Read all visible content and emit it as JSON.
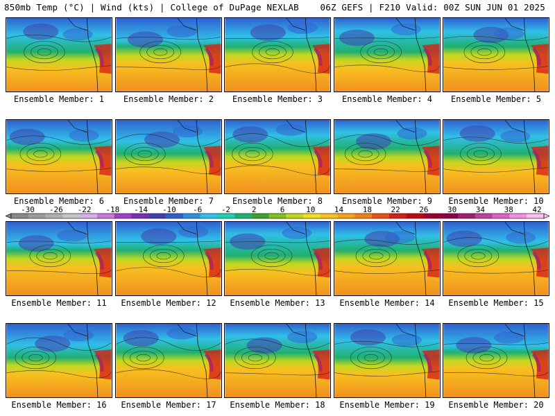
{
  "header": {
    "left": "850mb Temp (°C) | Wind (kts) | College of DuPage NEXLAB",
    "right": "06Z GEFS | F210 Valid: 00Z SUN JUN 01 2025"
  },
  "members": [
    "Ensemble Member: 1",
    "Ensemble Member: 2",
    "Ensemble Member: 3",
    "Ensemble Member: 4",
    "Ensemble Member: 5",
    "Ensemble Member: 6",
    "Ensemble Member: 7",
    "Ensemble Member: 8",
    "Ensemble Member: 9",
    "Ensemble Member: 10",
    "Ensemble Member: 11",
    "Ensemble Member: 12",
    "Ensemble Member: 13",
    "Ensemble Member: 14",
    "Ensemble Member: 15",
    "Ensemble Member: 16",
    "Ensemble Member: 17",
    "Ensemble Member: 18",
    "Ensemble Member: 19",
    "Ensemble Member: 20"
  ],
  "colorbar": {
    "labels": [
      "-30",
      "-26",
      "-22",
      "-18",
      "-14",
      "-10",
      "-6",
      "-2",
      "2",
      "6",
      "10",
      "14",
      "18",
      "22",
      "26",
      "30",
      "34",
      "38",
      "42"
    ],
    "colors": [
      "#8a8a8a",
      "#9c9c9c",
      "#b0b0b0",
      "#c6c6c6",
      "#d6b0e8",
      "#c87ad8",
      "#a040c8",
      "#7830b8",
      "#4040b0",
      "#3060d0",
      "#3090e0",
      "#30c0e8",
      "#20d0b0",
      "#20b070",
      "#40a030",
      "#80c020",
      "#c0d820",
      "#f0e020",
      "#f8c020",
      "#f8a018",
      "#f08018",
      "#e85018",
      "#d82018",
      "#c00818",
      "#a00030",
      "#900048",
      "#a02070",
      "#c040a0",
      "#e060c8",
      "#f090e0",
      "#f8c0f0"
    ]
  }
}
